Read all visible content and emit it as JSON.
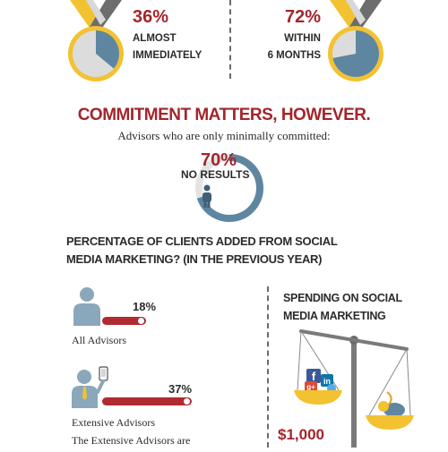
{
  "stats_top": {
    "left": {
      "percent": "36%",
      "line1": "ALMOST",
      "line2": "IMMEDIATELY",
      "fraction": 0.36
    },
    "right": {
      "percent": "72%",
      "line1": "WITHIN",
      "line2": "6 MONTHS",
      "fraction": 0.72
    }
  },
  "commitment": {
    "heading": "COMMITMENT MATTERS, HOWEVER.",
    "subheading": "Advisors who are only minimally committed:",
    "percent": "70%",
    "label": "NO RESULTS",
    "fraction": 0.7
  },
  "clients_section": {
    "title_line1": "PERCENTAGE OF CLIENTS ADDED FROM SOCIAL",
    "title_line2": "MEDIA MARKETING? (IN THE PREVIOUS YEAR)",
    "rows": [
      {
        "percent": "18%",
        "label": "All Advisors",
        "fraction": 0.18
      },
      {
        "percent": "37%",
        "label": "Extensive Advisors",
        "fraction": 0.37
      }
    ],
    "footnote": "The Extensive Advisors are"
  },
  "spending": {
    "title_line1": "SPENDING ON SOCIAL",
    "title_line2": "MEDIA MARKETING",
    "amount": "$1,000",
    "icon_labels": {
      "linkedin": "in",
      "googleplus": "g+"
    }
  },
  "colors": {
    "red": "#a2252b",
    "steel_blue": "#5f86a0",
    "gold": "#f2c230",
    "gray": "#8a8a8a"
  }
}
